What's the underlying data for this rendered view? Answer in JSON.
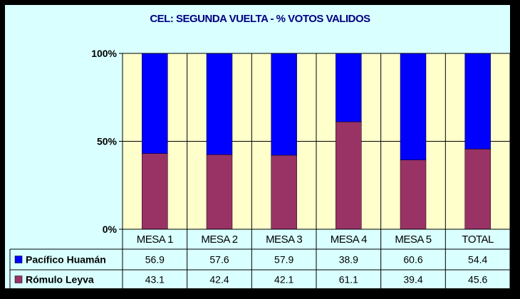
{
  "chart_data": {
    "type": "bar",
    "stacked": true,
    "title": "CEL: SEGUNDA VUELTA - % VOTOS VALIDOS",
    "categories": [
      "MESA 1",
      "MESA 2",
      "MESA 3",
      "MESA 4",
      "MESA 5",
      "TOTAL"
    ],
    "series": [
      {
        "name": "Rómulo Leyva",
        "values": [
          43.1,
          42.4,
          42.1,
          61.1,
          39.4,
          45.6
        ],
        "color": "#993366"
      },
      {
        "name": "Pacífico Huamán",
        "values": [
          56.9,
          57.6,
          57.9,
          38.9,
          60.6,
          54.4
        ],
        "color": "#0000ff"
      }
    ],
    "table_rows": [
      {
        "name": "Pacífico Huamán",
        "values": [
          "56.9",
          "57.6",
          "57.9",
          "38.9",
          "60.6",
          "54.4"
        ],
        "color": "#0000ff"
      },
      {
        "name": "Rómulo Leyva",
        "values": [
          "43.1",
          "42.4",
          "42.1",
          "61.1",
          "39.4",
          "45.6"
        ],
        "color": "#993366"
      }
    ],
    "y_ticks": [
      "0%",
      "50%",
      "100%"
    ],
    "ylim": [
      0,
      100
    ],
    "grid": true,
    "plot_background": "#ffffcc",
    "data_table": true
  }
}
